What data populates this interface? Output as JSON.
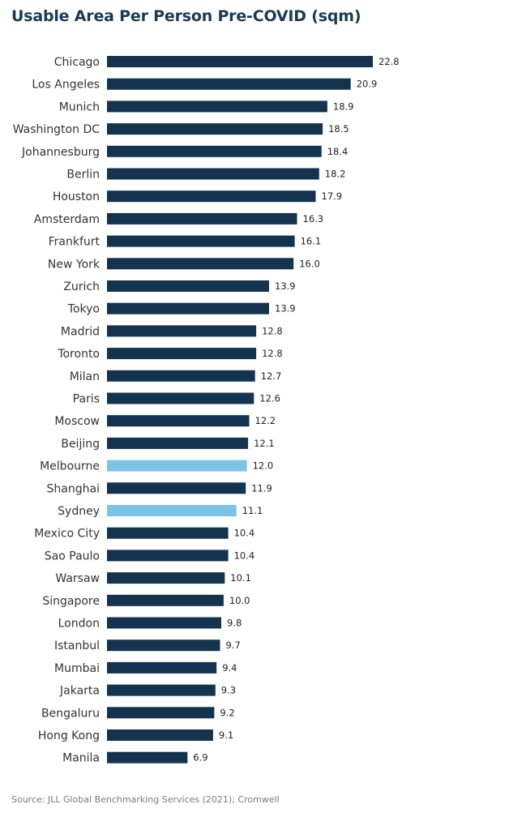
{
  "chart_data": {
    "type": "bar",
    "orientation": "horizontal",
    "title": "Usable Area Per Person Pre-COVID (sqm)",
    "categories": [
      "Chicago",
      "Los Angeles",
      "Munich",
      "Washington DC",
      "Johannesburg",
      "Berlin",
      "Houston",
      "Amsterdam",
      "Frankfurt",
      "New York",
      "Zurich",
      "Tokyo",
      "Madrid",
      "Toronto",
      "Milan",
      "Paris",
      "Moscow",
      "Beijing",
      "Melbourne",
      "Shanghai",
      "Sydney",
      "Mexico City",
      "Sao Paulo",
      "Warsaw",
      "Singapore",
      "London",
      "Istanbul",
      "Mumbai",
      "Jakarta",
      "Bengaluru",
      "Hong Kong",
      "Manila"
    ],
    "values": [
      22.8,
      20.9,
      18.9,
      18.5,
      18.4,
      18.2,
      17.9,
      16.3,
      16.1,
      16.0,
      13.9,
      13.9,
      12.8,
      12.8,
      12.7,
      12.6,
      12.2,
      12.1,
      12.0,
      11.9,
      11.1,
      10.4,
      10.4,
      10.1,
      10.0,
      9.8,
      9.7,
      9.4,
      9.3,
      9.2,
      9.1,
      6.9
    ],
    "value_labels": [
      "22.8",
      "20.9",
      "18.9",
      "18.5",
      "18.4",
      "18.2",
      "17.9",
      "16.3",
      "16.1",
      "16.0",
      "13.9",
      "13.9",
      "12.8",
      "12.8",
      "12.7",
      "12.6",
      "12.2",
      "12.1",
      "12.0",
      "11.9",
      "11.1",
      "10.4",
      "10.4",
      "10.1",
      "10.0",
      "9.8",
      "9.7",
      "9.4",
      "9.3",
      "9.2",
      "9.1",
      "6.9"
    ],
    "highlighted": [
      "Melbourne",
      "Sydney"
    ],
    "colors": {
      "default": "#14334f",
      "highlight": "#7cc4e6"
    },
    "xlim": [
      0,
      22.8
    ],
    "grid": false,
    "legend": "none"
  },
  "source": "Source: JLL Global Benchmarking Services (2021); Cromwell"
}
